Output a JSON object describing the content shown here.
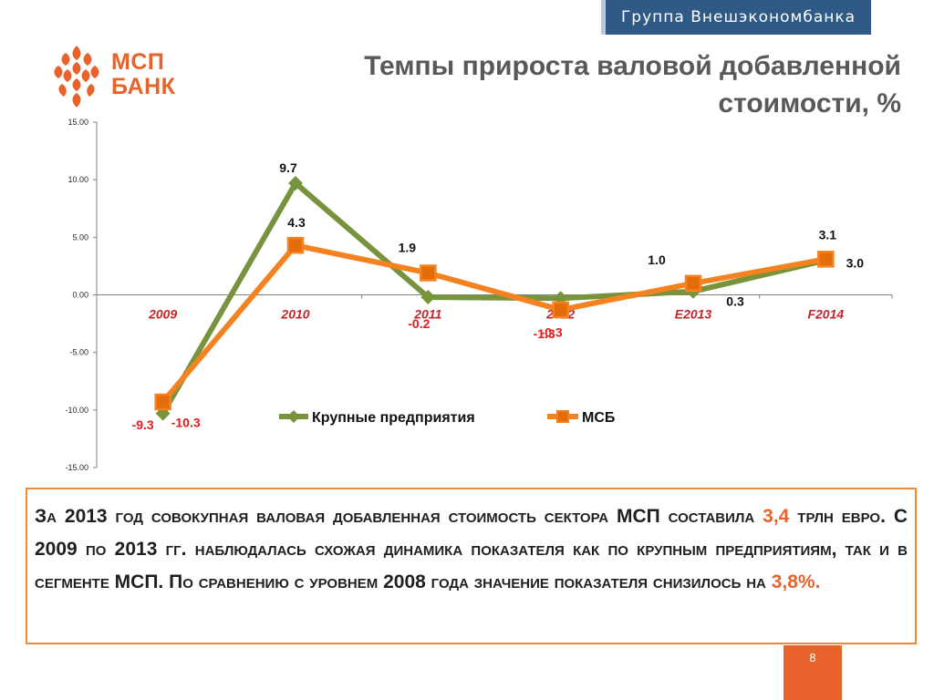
{
  "header": {
    "group_label": "Группа Внешэкономбанка",
    "logo_line1": "МСП",
    "logo_line2": "БАНК",
    "title_line1": "Темпы прироста валовой добавленной",
    "title_line2": "стоимости, %"
  },
  "colors": {
    "brand_orange": "#e8622b",
    "large_series": "#77933c",
    "sme_series": "#f58220",
    "sme_marker_fill": "#e46c0a",
    "negative_label": "#e31b1b",
    "category_label": "#c0272d",
    "banner_blue": "#2f5a86"
  },
  "chart_data": {
    "type": "line",
    "categories": [
      "2009",
      "2010",
      "2011",
      "2012",
      "E2013",
      "F2014"
    ],
    "ylim": [
      -15,
      15
    ],
    "y_ticks": [
      "15.00",
      "10.00",
      "5.00",
      "0.00",
      "-5.00",
      "-10.00",
      "-15.00"
    ],
    "grid": false,
    "legend_position": "center",
    "series": [
      {
        "name": "Крупные предприятия",
        "marker": "diamond",
        "values": [
          -10.3,
          9.7,
          -0.2,
          -0.3,
          0.3,
          3.0
        ],
        "labels": [
          "-10.3",
          "9.7",
          "-0.2",
          "-0.3",
          "0.3",
          "3.0"
        ]
      },
      {
        "name": "МСБ",
        "marker": "square",
        "values": [
          -9.3,
          4.3,
          1.9,
          -1.3,
          1.0,
          3.1
        ],
        "labels": [
          "-9.3",
          "4.3",
          "1.9",
          "-1.3",
          "1.0",
          "3.1"
        ]
      }
    ]
  },
  "summary": {
    "part1": "За 2013 год совокупная валовая добавленная стоимость сектора МСП составила ",
    "value1": "3,4",
    "part2": " трлн евро. С 2009 по 2013 гг. наблюдалась схожая динамика показателя как по крупным предприятиям, так и в сегменте МСП. По сравнению с уровнем 2008 года значение показателя снизилось на ",
    "value2": "3,8%."
  },
  "footer": {
    "page_number": "8"
  }
}
